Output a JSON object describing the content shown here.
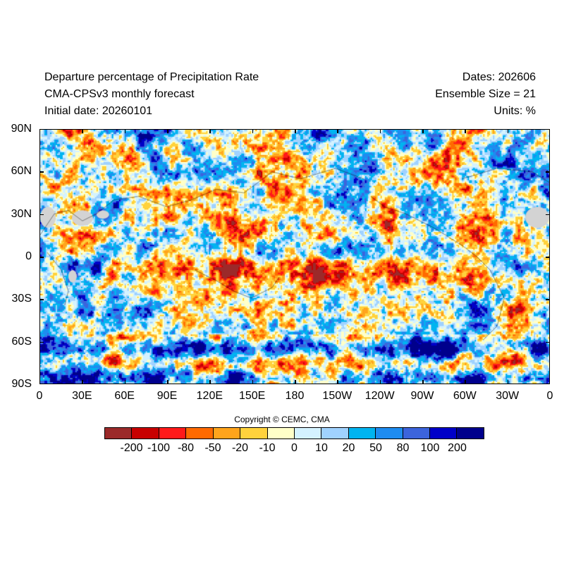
{
  "header": {
    "title": "Departure percentage of Precipitation Rate",
    "model": "CMA-CPSv3 monthly forecast",
    "initial_date": "Initial date: 20260101",
    "dates": "Dates: 202606",
    "ensemble": "Ensemble Size = 21",
    "units": "Units: %"
  },
  "map": {
    "lat_labels": [
      "90N",
      "60N",
      "30N",
      "0",
      "30S",
      "60S",
      "90S"
    ],
    "lon_labels": [
      "0",
      "30E",
      "60E",
      "90E",
      "120E",
      "150E",
      "180",
      "150W",
      "120W",
      "90W",
      "60W",
      "30W",
      "0"
    ],
    "missing_color": "#d3d3d3"
  },
  "colorbar": {
    "colors": [
      "#9b2a2a",
      "#c80000",
      "#ff1a1a",
      "#ff6a00",
      "#ffa41c",
      "#ffd23c",
      "#ffffc8",
      "#d4f2ff",
      "#a0d2ff",
      "#00b4f0",
      "#1e8cf0",
      "#3c64dc",
      "#0000c8",
      "#00008c"
    ],
    "labels": [
      "-200",
      "-100",
      "-80",
      "-50",
      "-20",
      "-10",
      "0",
      "10",
      "20",
      "50",
      "80",
      "100",
      "200"
    ]
  },
  "copyright": "Copyright © CEMC, CMA"
}
